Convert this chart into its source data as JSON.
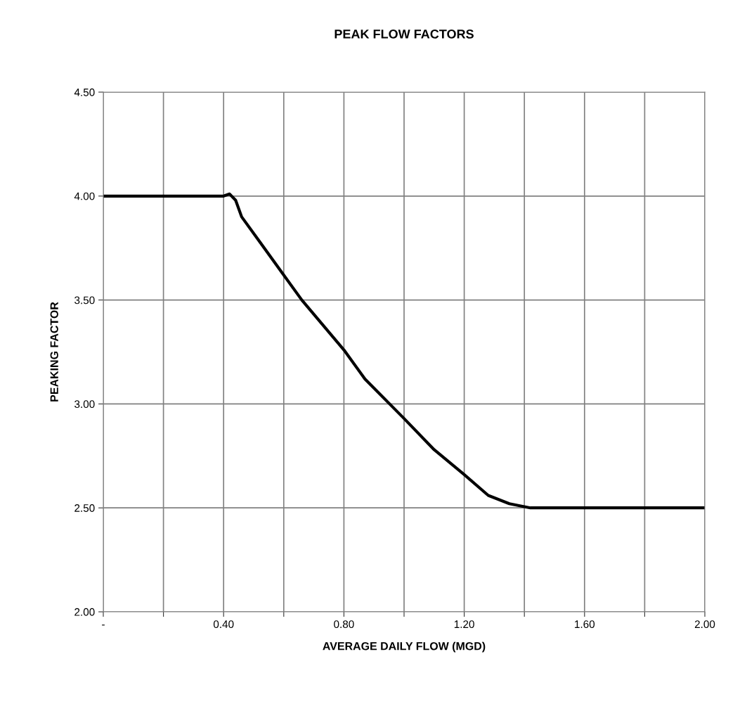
{
  "chart_data": {
    "type": "line",
    "title": "PEAK FLOW FACTORS",
    "xlabel": "AVERAGE DAILY FLOW (MGD)",
    "ylabel": "PEAKING FACTOR",
    "series": [
      {
        "color": "#000000",
        "x": [
          0,
          0.4,
          0.42,
          0.44,
          0.46,
          0.52,
          0.59,
          0.66,
          0.8,
          0.87,
          1.0,
          1.1,
          1.2,
          1.28,
          1.35,
          1.42,
          2.0
        ],
        "values": [
          4.0,
          4.0,
          4.01,
          3.98,
          3.9,
          3.78,
          3.64,
          3.5,
          3.26,
          3.12,
          2.93,
          2.78,
          2.66,
          2.56,
          2.52,
          2.5,
          2.5
        ]
      }
    ],
    "xlim": [
      0,
      2.0
    ],
    "ylim": [
      2.0,
      4.5
    ],
    "xticks": [
      {
        "value": 0,
        "label": "-"
      },
      {
        "value": 0.2,
        "label": null
      },
      {
        "value": 0.4,
        "label": "0.40"
      },
      {
        "value": 0.6,
        "label": null
      },
      {
        "value": 0.8,
        "label": "0.80"
      },
      {
        "value": 1.0,
        "label": null
      },
      {
        "value": 1.2,
        "label": "1.20"
      },
      {
        "value": 1.4,
        "label": null
      },
      {
        "value": 1.6,
        "label": "1.60"
      },
      {
        "value": 1.8,
        "label": null
      },
      {
        "value": 2.0,
        "label": "2.00"
      }
    ],
    "yticks": [
      {
        "value": 2.0,
        "label": "2.00"
      },
      {
        "value": 2.5,
        "label": "2.50"
      },
      {
        "value": 3.0,
        "label": "3.00"
      },
      {
        "value": 3.5,
        "label": "3.50"
      },
      {
        "value": 4.0,
        "label": "4.00"
      },
      {
        "value": 4.5,
        "label": "4.50"
      }
    ],
    "grid": true,
    "legend": false,
    "marker": "none",
    "line_style": "solid"
  }
}
